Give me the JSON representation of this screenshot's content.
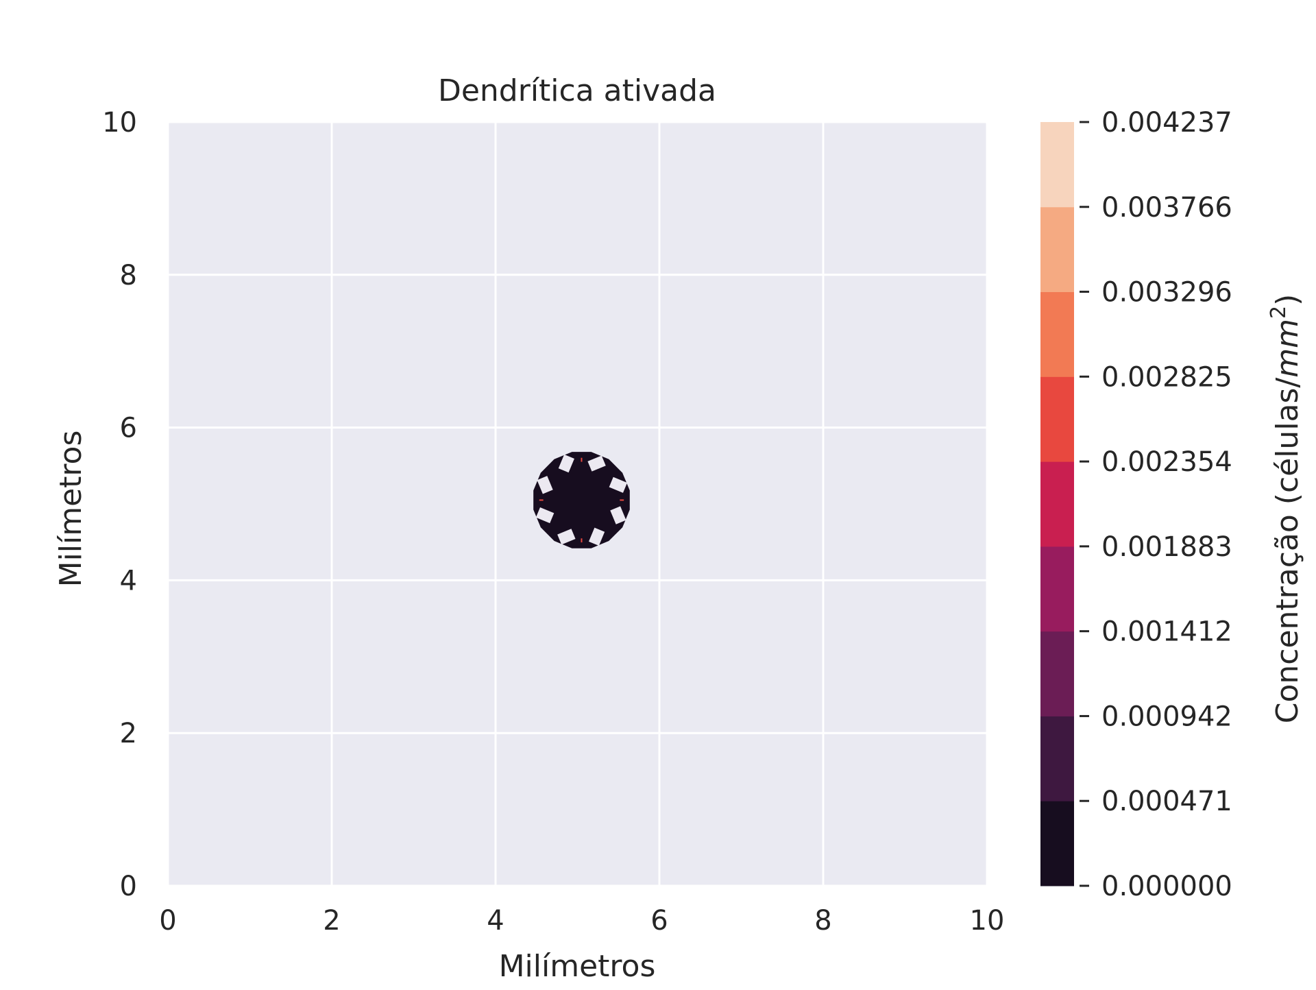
{
  "chart_data": {
    "type": "heatmap",
    "subtype": "filled-contour",
    "title": "Dendrítica ativada",
    "xlabel": "Milímetros",
    "ylabel": "Milímetros",
    "xlim": [
      0,
      10
    ],
    "ylim": [
      0,
      10
    ],
    "xticks": [
      "0",
      "2",
      "4",
      "6",
      "8",
      "10"
    ],
    "yticks": [
      "0",
      "2",
      "4",
      "6",
      "8",
      "10"
    ],
    "grid": true,
    "background_color": "#eaeaf2",
    "grid_color": "#ffffff",
    "colorbar": {
      "label_prefix": "Concentração (células/",
      "label_unit": "mm",
      "label_exp": "2",
      "label_suffix": ")",
      "levels": [
        "0.000000",
        "0.000471",
        "0.000942",
        "0.001412",
        "0.001883",
        "0.002354",
        "0.002825",
        "0.003296",
        "0.003766",
        "0.004237"
      ],
      "colors": [
        "#170d1f",
        "#3e1840",
        "#6b1d55",
        "#981c5e",
        "#c91f50",
        "#e8483f",
        "#f27a54",
        "#f5aa82",
        "#f7d4bd"
      ]
    },
    "feature": {
      "description_free": true,
      "center": [
        5.05,
        5.05
      ],
      "outer_radius": 0.6,
      "inner_radius": 0.3,
      "gap_angles_deg": [
        22.5,
        67.5,
        112.5,
        157.5,
        202.5,
        247.5,
        292.5,
        337.5
      ],
      "fill_color": "#170d1f",
      "spike_color": "#e8483f",
      "spike_angles_deg": [
        0,
        90,
        180,
        270
      ]
    }
  }
}
